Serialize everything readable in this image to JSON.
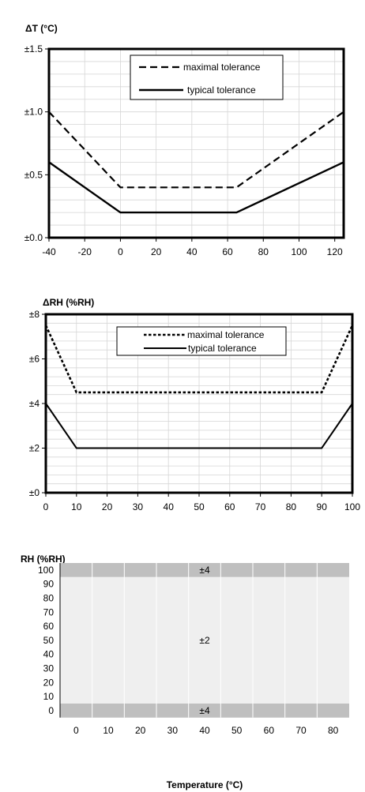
{
  "chart_data": [
    {
      "type": "line",
      "title": "",
      "ylabel": "ΔT (°C)",
      "xlabel": "",
      "xlim": [
        -40,
        125
      ],
      "ylim": [
        0,
        1.5
      ],
      "x_ticks": [
        -40,
        -20,
        0,
        20,
        40,
        60,
        80,
        100,
        120
      ],
      "y_ticks": [
        0,
        0.5,
        1.0,
        1.5
      ],
      "x_tick_labels": [
        "-40",
        "-20",
        "0",
        "20",
        "40",
        "60",
        "80",
        "100",
        "120"
      ],
      "y_tick_labels": [
        "±0.0",
        "±0.5",
        "±1.0",
        "±1.5"
      ],
      "grid": true,
      "legend_position": "top-center",
      "series": [
        {
          "name": "maximal tolerance",
          "style": "dashed",
          "x": [
            -40,
            0,
            65,
            125
          ],
          "y": [
            1.0,
            0.4,
            0.4,
            1.0
          ]
        },
        {
          "name": "typical tolerance",
          "style": "solid",
          "x": [
            -40,
            0,
            65,
            125
          ],
          "y": [
            0.6,
            0.2,
            0.2,
            0.6
          ]
        }
      ]
    },
    {
      "type": "line",
      "title": "",
      "ylabel": "ΔRH (%RH)",
      "xlabel": "",
      "xlim": [
        0,
        100
      ],
      "ylim": [
        0,
        8
      ],
      "x_ticks": [
        0,
        10,
        20,
        30,
        40,
        50,
        60,
        70,
        80,
        90,
        100
      ],
      "y_ticks": [
        0,
        2,
        4,
        6,
        8
      ],
      "x_tick_labels": [
        "0",
        "10",
        "20",
        "30",
        "40",
        "50",
        "60",
        "70",
        "80",
        "90",
        "100"
      ],
      "y_tick_labels": [
        "±0",
        "±2",
        "±4",
        "±6",
        "±8"
      ],
      "grid": true,
      "legend_position": "top-center",
      "series": [
        {
          "name": "maximal tolerance",
          "style": "dotted",
          "x": [
            0,
            10,
            90,
            100
          ],
          "y": [
            7.5,
            4.5,
            4.5,
            7.5
          ]
        },
        {
          "name": "typical tolerance",
          "style": "solid",
          "x": [
            0,
            10,
            90,
            100
          ],
          "y": [
            4,
            2,
            2,
            4
          ]
        }
      ]
    },
    {
      "type": "heatmap",
      "title": "",
      "ylabel": "RH (%RH)",
      "xlabel": "Temperature (°C)",
      "x_tick_labels": [
        "0",
        "10",
        "20",
        "30",
        "40",
        "50",
        "60",
        "70",
        "80"
      ],
      "y_tick_labels": [
        "100",
        "90",
        "80",
        "70",
        "60",
        "50",
        "40",
        "30",
        "20",
        "10",
        "0"
      ],
      "regions": [
        {
          "rh_range": [
            100,
            100
          ],
          "label": "±4",
          "color": "#bfbfbf"
        },
        {
          "rh_range": [
            10,
            90
          ],
          "label": "±2",
          "color": "#efefef"
        },
        {
          "rh_range": [
            0,
            0
          ],
          "label": "±4",
          "color": "#bfbfbf"
        }
      ]
    }
  ]
}
